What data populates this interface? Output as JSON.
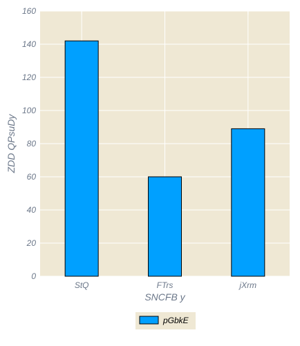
{
  "chart_data": {
    "type": "bar",
    "categories": [
      "StQ",
      "FTrs",
      "jXrm"
    ],
    "series": [
      {
        "name": "pGbkE",
        "values": [
          142,
          60,
          89
        ]
      }
    ],
    "xlabel": "SNCFB y",
    "ylabel": "ZDD QPsuDy",
    "ylim": [
      0,
      160
    ],
    "yticks": [
      0,
      20,
      40,
      60,
      80,
      100,
      120,
      140,
      160
    ],
    "grid": true,
    "legend_position": "bottom-center"
  },
  "colors": {
    "plot_background": "#efe8d4",
    "bar_fill": "#00a0ff",
    "bar_stroke": "#000000",
    "grid": "#ffffff",
    "text": "#6b7789"
  }
}
